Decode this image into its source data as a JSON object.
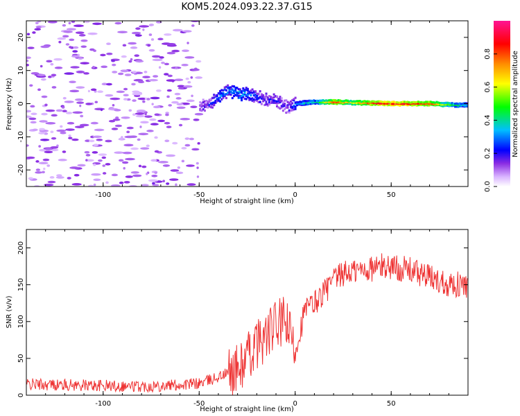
{
  "figure": {
    "title": "KOM5.2024.093.22.37.G15"
  },
  "chart_data": [
    {
      "type": "heatmap",
      "xlabel": "Height of straight line (km)",
      "ylabel": "Frequency (Hz)",
      "xlim": [
        -140,
        90
      ],
      "ylim": [
        -25,
        25
      ],
      "xticks": [
        -100,
        -50,
        0,
        50
      ],
      "yticks": [
        -20,
        -10,
        0,
        10,
        20
      ],
      "colorbar": {
        "label": "Normalized spectral amplitude",
        "range": [
          0,
          1
        ],
        "ticks": [
          0.0,
          0.2,
          0.4,
          0.6,
          0.8
        ],
        "colors": [
          "#ffffff",
          "#d9b3ff",
          "#8a2be2",
          "#0000ff",
          "#00bfff",
          "#00ff00",
          "#ffff00",
          "#ff8c00",
          "#ff0000",
          "#ff1493"
        ]
      },
      "ridge": {
        "x": [
          -50,
          -45,
          -40,
          -35,
          -30,
          -25,
          -20,
          -15,
          -10,
          -5,
          0,
          10,
          20,
          30,
          40,
          50,
          60,
          70,
          80,
          90
        ],
        "frequency": [
          -1,
          0,
          2,
          4,
          3,
          3,
          2,
          1,
          1,
          -1,
          0,
          0.5,
          0.5,
          0.3,
          0.2,
          0,
          0,
          0,
          -0.3,
          -0.5
        ],
        "amplitude": [
          0.15,
          0.2,
          0.3,
          0.3,
          0.35,
          0.3,
          0.25,
          0.2,
          0.2,
          0.15,
          0.3,
          0.4,
          0.8,
          0.6,
          0.85,
          0.9,
          0.85,
          0.8,
          0.5,
          0.3
        ]
      }
    },
    {
      "type": "line",
      "xlabel": "Height of straight line (km)",
      "ylabel": "SNR (v/v)",
      "xlim": [
        -140,
        90
      ],
      "ylim": [
        0,
        225
      ],
      "xticks": [
        -100,
        -50,
        0,
        50
      ],
      "yticks": [
        0,
        50,
        100,
        150,
        200
      ],
      "color": "#ee3333",
      "x": [
        -140,
        -120,
        -100,
        -80,
        -60,
        -50,
        -45,
        -40,
        -35,
        -30,
        -25,
        -20,
        -15,
        -10,
        -5,
        0,
        5,
        10,
        15,
        20,
        25,
        30,
        35,
        40,
        45,
        50,
        55,
        60,
        65,
        70,
        75,
        80,
        85,
        90
      ],
      "y": [
        15,
        14,
        13,
        12,
        14,
        16,
        20,
        25,
        30,
        35,
        50,
        70,
        80,
        95,
        100,
        60,
        115,
        125,
        140,
        155,
        165,
        168,
        170,
        172,
        175,
        175,
        172,
        170,
        165,
        160,
        155,
        152,
        150,
        148
      ]
    }
  ]
}
